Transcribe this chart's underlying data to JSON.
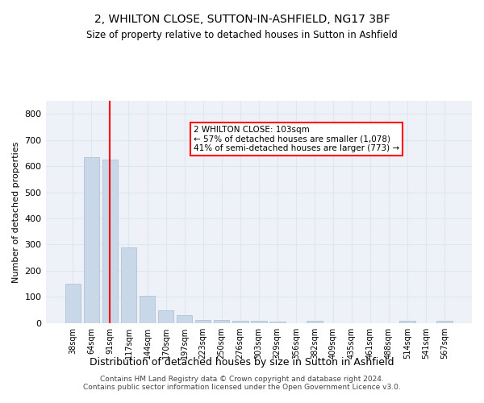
{
  "title": "2, WHILTON CLOSE, SUTTON-IN-ASHFIELD, NG17 3BF",
  "subtitle": "Size of property relative to detached houses in Sutton in Ashfield",
  "xlabel": "Distribution of detached houses by size in Sutton in Ashfield",
  "ylabel": "Number of detached properties",
  "categories": [
    "38sqm",
    "64sqm",
    "91sqm",
    "117sqm",
    "144sqm",
    "170sqm",
    "197sqm",
    "223sqm",
    "250sqm",
    "276sqm",
    "303sqm",
    "329sqm",
    "356sqm",
    "382sqm",
    "409sqm",
    "435sqm",
    "461sqm",
    "488sqm",
    "514sqm",
    "541sqm",
    "567sqm"
  ],
  "values": [
    150,
    633,
    625,
    290,
    105,
    48,
    30,
    13,
    12,
    7,
    8,
    6,
    0,
    8,
    0,
    0,
    0,
    0,
    7,
    0,
    7
  ],
  "bar_color": "#c8d8e8",
  "bar_edge_color": "#a8bece",
  "grid_color": "#dce8f0",
  "background_color": "#eef2f8",
  "vline_x": 2,
  "vline_color": "red",
  "annotation_text": "2 WHILTON CLOSE: 103sqm\n← 57% of detached houses are smaller (1,078)\n41% of semi-detached houses are larger (773) →",
  "annotation_box_color": "white",
  "annotation_box_edge": "red",
  "ylim": [
    0,
    850
  ],
  "yticks": [
    0,
    100,
    200,
    300,
    400,
    500,
    600,
    700,
    800
  ],
  "footer1": "Contains HM Land Registry data © Crown copyright and database right 2024.",
  "footer2": "Contains public sector information licensed under the Open Government Licence v3.0."
}
